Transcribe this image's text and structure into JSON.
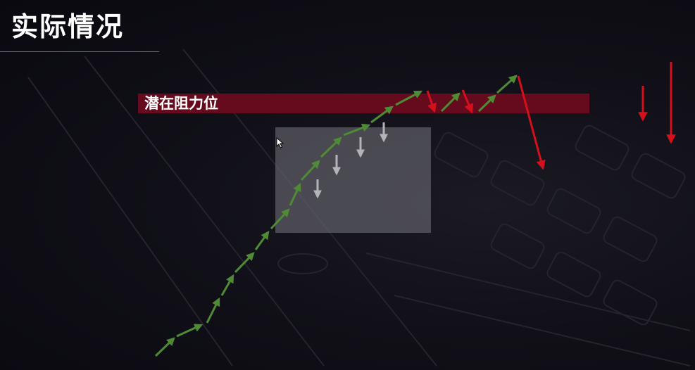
{
  "title": "实际情况",
  "band_label": "潜在阻力位",
  "colors": {
    "band": "#6e0a1e",
    "up_arrow": "#4f8a35",
    "down_arrow_red": "#d4101c",
    "down_arrow_gray": "#b4b4b8",
    "highlight_box": "#6b6b73"
  },
  "icons": [
    "cursor-arrow-icon"
  ]
}
